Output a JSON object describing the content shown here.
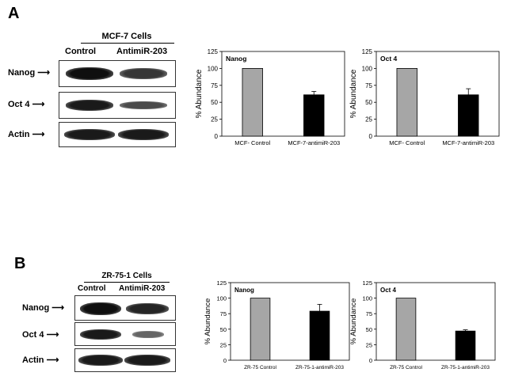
{
  "panels": [
    {
      "letter": "A",
      "cells_title": "MCF-7 Cells",
      "lane_labels": [
        "Control",
        "AntimiR-203"
      ],
      "rows": [
        {
          "label": "Nanog",
          "intensity": [
            1.0,
            0.82
          ]
        },
        {
          "label": "Oct 4",
          "intensity": [
            0.95,
            0.72
          ]
        },
        {
          "label": "Actin",
          "intensity": [
            0.95,
            0.95
          ]
        }
      ]
    },
    {
      "letter": "B",
      "cells_title": "ZR-75-1 Cells",
      "lane_labels": [
        "Control",
        "AntimiR-203"
      ],
      "rows": [
        {
          "label": "Nanog",
          "intensity": [
            1.0,
            0.9
          ]
        },
        {
          "label": "Oct 4",
          "intensity": [
            0.95,
            0.6
          ]
        },
        {
          "label": "Actin",
          "intensity": [
            0.95,
            0.95
          ]
        }
      ]
    }
  ],
  "chart_data": [
    {
      "type": "bar",
      "title": "Nanog",
      "ylabel": "% Abundance",
      "categories": [
        "MCF- Control",
        "MCF-7-antimiR-203"
      ],
      "values": [
        100,
        61
      ],
      "errors": [
        0,
        5
      ],
      "ylim": [
        0,
        125
      ],
      "yticks": [
        0,
        25,
        50,
        75,
        100,
        125
      ],
      "colors": [
        "#a6a6a6",
        "#000000"
      ]
    },
    {
      "type": "bar",
      "title": "Oct 4",
      "ylabel": "% Abundance",
      "categories": [
        "MCF- Control",
        "MCF-7-antimiR-203"
      ],
      "values": [
        100,
        61
      ],
      "errors": [
        0,
        9
      ],
      "ylim": [
        0,
        125
      ],
      "yticks": [
        0,
        25,
        50,
        75,
        100,
        125
      ],
      "colors": [
        "#a6a6a6",
        "#000000"
      ]
    },
    {
      "type": "bar",
      "title": "Nanog",
      "ylabel": "% Abundance",
      "categories": [
        "ZR-75 Control",
        "ZR-75-1-antimiR-203"
      ],
      "values": [
        100,
        79
      ],
      "errors": [
        0,
        11
      ],
      "ylim": [
        0,
        125
      ],
      "yticks": [
        0,
        25,
        50,
        75,
        100,
        125
      ],
      "colors": [
        "#a6a6a6",
        "#000000"
      ]
    },
    {
      "type": "bar",
      "title": "Oct 4",
      "ylabel": "% Abundance",
      "categories": [
        "ZR-75 Control",
        "ZR-75-1-antimiR-203"
      ],
      "values": [
        100,
        47
      ],
      "errors": [
        0,
        2
      ],
      "ylim": [
        0,
        125
      ],
      "yticks": [
        0,
        25,
        50,
        75,
        100,
        125
      ],
      "colors": [
        "#a6a6a6",
        "#000000"
      ]
    }
  ]
}
